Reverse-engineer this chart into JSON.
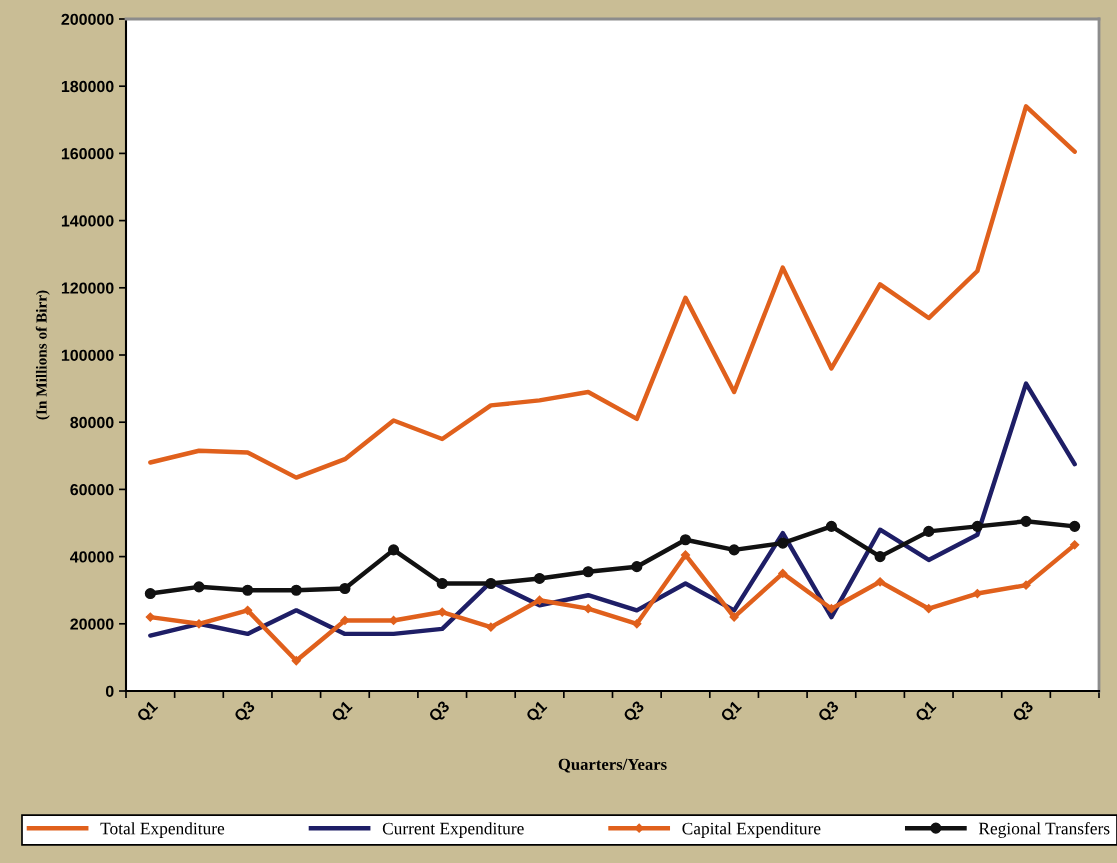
{
  "chart_data": {
    "type": "line",
    "xlabel": "Quarters/Years",
    "ylabel": "(In Millions of Birr)",
    "categories": [
      "Q1",
      null,
      "Q3",
      null,
      "Q1",
      null,
      "Q3",
      null,
      "Q1",
      null,
      "Q3",
      null,
      "Q1",
      null,
      "Q3",
      null,
      "Q1",
      null,
      "Q3",
      null
    ],
    "ylim": [
      0,
      200000
    ],
    "yticks": [
      0,
      20000,
      40000,
      60000,
      80000,
      100000,
      120000,
      140000,
      160000,
      180000,
      200000
    ],
    "grid": false,
    "legend": "bottom",
    "line_style": "solid",
    "series": [
      {
        "name": "Total Expenditure",
        "color": "#e0601c",
        "marker": "none",
        "values": [
          68000,
          71500,
          71000,
          63500,
          69000,
          80500,
          75000,
          85000,
          86500,
          89000,
          81000,
          117000,
          89000,
          126000,
          96000,
          121000,
          111000,
          125000,
          174000,
          160500
        ]
      },
      {
        "name": "Current Expenditure",
        "color": "#1e1e66",
        "marker": "none",
        "values": [
          16500,
          20000,
          17000,
          24000,
          17000,
          17000,
          18500,
          32500,
          25500,
          28500,
          24000,
          32000,
          24000,
          47000,
          22000,
          48000,
          39000,
          46500,
          91500,
          67500
        ]
      },
      {
        "name": "Capital Expenditure",
        "color": "#e0601c",
        "marker": "diamond",
        "values": [
          22000,
          20000,
          24000,
          9000,
          21000,
          21000,
          23500,
          19000,
          27000,
          24500,
          20000,
          40500,
          22000,
          35000,
          24500,
          32500,
          24500,
          29000,
          31500,
          43500
        ]
      },
      {
        "name": "Regional Transfers",
        "color": "#111111",
        "marker": "circle",
        "values": [
          29000,
          31000,
          30000,
          30000,
          30500,
          42000,
          32000,
          32000,
          33500,
          35500,
          37000,
          45000,
          42000,
          44000,
          49000,
          40000,
          47500,
          49000,
          50500,
          49000
        ]
      }
    ]
  }
}
